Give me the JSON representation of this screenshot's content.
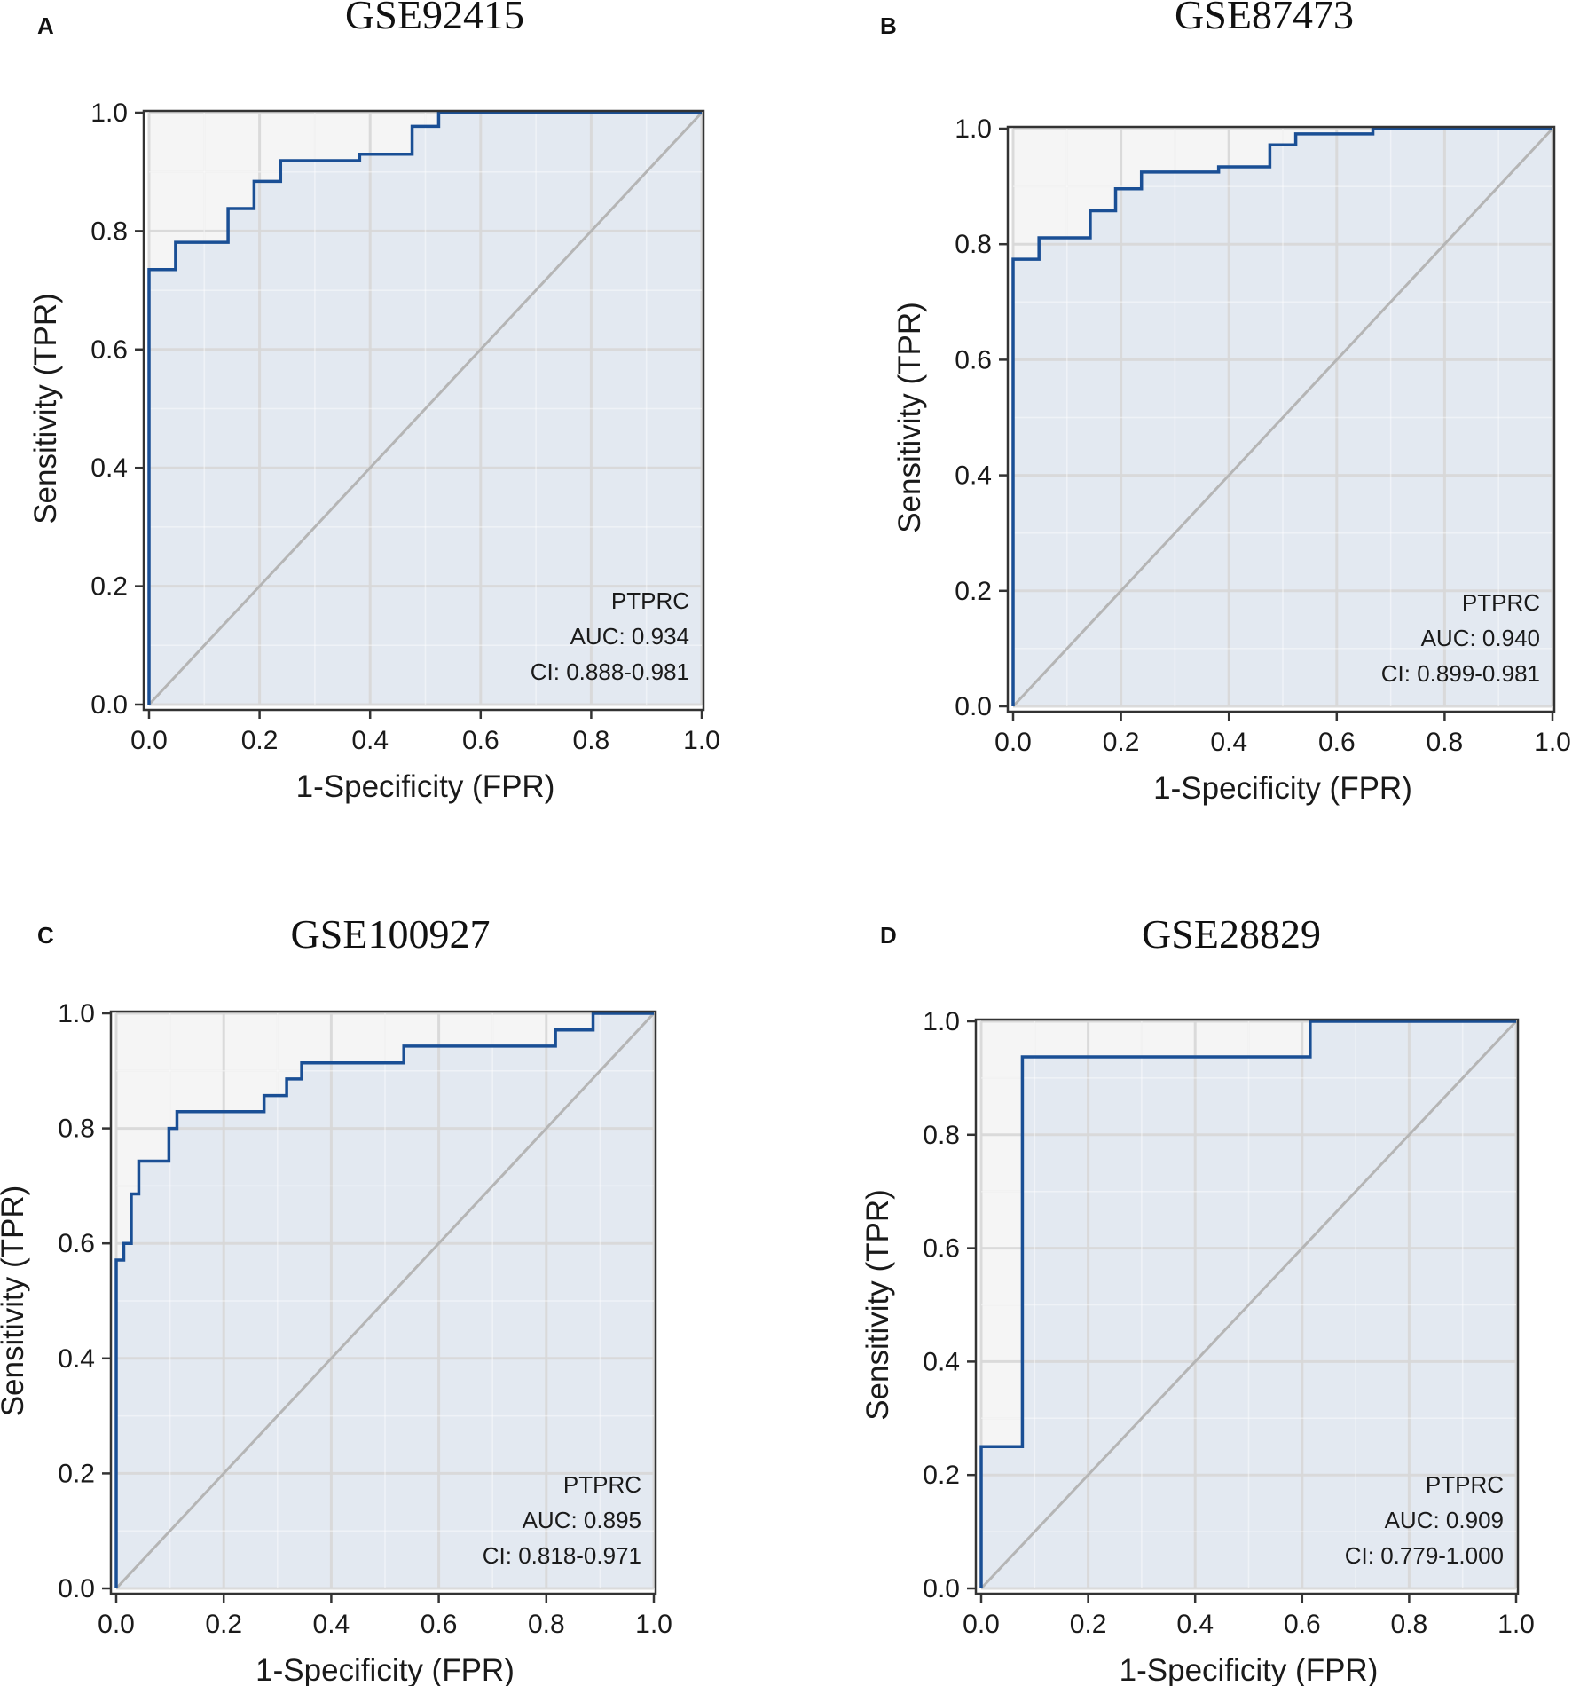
{
  "colors": {
    "roc_line": "#1a4f95",
    "fill": "#e3e9f1",
    "grid_major": "#d8d8d8",
    "grid_minor": "#ebebeb",
    "diagonal": "#b5b5b5",
    "axis": "#333333"
  },
  "chart_data": [
    {
      "type": "line",
      "panel": "A",
      "title": "GSE92415",
      "xlabel": "1-Specificity (FPR)",
      "ylabel": "Sensitivity (TPR)",
      "xlim": [
        0,
        1
      ],
      "ylim": [
        0,
        1
      ],
      "xticks": [
        "0.0",
        "0.2",
        "0.4",
        "0.6",
        "0.8",
        "1.0"
      ],
      "yticks": [
        "0.0",
        "0.2",
        "0.4",
        "0.6",
        "0.8",
        "1.0"
      ],
      "annotation": [
        "PTPRC",
        "AUC: 0.934",
        "CI: 0.888-0.981"
      ],
      "series": [
        {
          "name": "PTPRC",
          "fpr": [
            0,
            0,
            0.048,
            0.048,
            0.143,
            0.143,
            0.19,
            0.19,
            0.238,
            0.238,
            0.381,
            0.381,
            0.476,
            0.476,
            0.524,
            0.524,
            1.0
          ],
          "tpr": [
            0,
            0.735,
            0.735,
            0.781,
            0.781,
            0.838,
            0.838,
            0.884,
            0.884,
            0.919,
            0.919,
            0.93,
            0.93,
            0.977,
            0.977,
            1.0,
            1.0
          ]
        }
      ]
    },
    {
      "type": "line",
      "panel": "B",
      "title": "GSE87473",
      "xlabel": "1-Specificity (FPR)",
      "ylabel": "Sensitivity (TPR)",
      "xlim": [
        0,
        1
      ],
      "ylim": [
        0,
        1
      ],
      "xticks": [
        "0.0",
        "0.2",
        "0.4",
        "0.6",
        "0.8",
        "1.0"
      ],
      "yticks": [
        "0.0",
        "0.2",
        "0.4",
        "0.6",
        "0.8",
        "1.0"
      ],
      "annotation": [
        "PTPRC",
        "AUC: 0.940",
        "CI: 0.899-0.981"
      ],
      "series": [
        {
          "name": "PTPRC",
          "fpr": [
            0,
            0,
            0.048,
            0.048,
            0.143,
            0.143,
            0.19,
            0.19,
            0.238,
            0.238,
            0.381,
            0.381,
            0.476,
            0.476,
            0.524,
            0.524,
            0.667,
            0.667,
            1.0
          ],
          "tpr": [
            0,
            0.774,
            0.774,
            0.811,
            0.811,
            0.858,
            0.858,
            0.896,
            0.896,
            0.925,
            0.925,
            0.934,
            0.934,
            0.972,
            0.972,
            0.991,
            0.991,
            1.0,
            1.0
          ]
        }
      ]
    },
    {
      "type": "line",
      "panel": "C",
      "title": "GSE100927",
      "xlabel": "1-Specificity (FPR)",
      "ylabel": "Sensitivity (TPR)",
      "xlim": [
        0,
        1
      ],
      "ylim": [
        0,
        1
      ],
      "xticks": [
        "0.0",
        "0.2",
        "0.4",
        "0.6",
        "0.8",
        "1.0"
      ],
      "yticks": [
        "0.0",
        "0.2",
        "0.4",
        "0.6",
        "0.8",
        "1.0"
      ],
      "annotation": [
        "PTPRC",
        "AUC: 0.895",
        "CI: 0.818-0.971"
      ],
      "series": [
        {
          "name": "PTPRC",
          "fpr": [
            0,
            0,
            0.014,
            0.014,
            0.028,
            0.028,
            0.042,
            0.042,
            0.098,
            0.098,
            0.113,
            0.113,
            0.275,
            0.275,
            0.317,
            0.317,
            0.345,
            0.345,
            0.535,
            0.535,
            0.817,
            0.817,
            0.887,
            0.887,
            1.0
          ],
          "tpr": [
            0,
            0.571,
            0.571,
            0.6,
            0.6,
            0.686,
            0.686,
            0.743,
            0.743,
            0.8,
            0.8,
            0.829,
            0.829,
            0.857,
            0.857,
            0.886,
            0.886,
            0.914,
            0.914,
            0.943,
            0.943,
            0.971,
            0.971,
            1.0,
            1.0
          ]
        }
      ]
    },
    {
      "type": "line",
      "panel": "D",
      "title": "GSE28829",
      "xlabel": "1-Specificity (FPR)",
      "ylabel": "Sensitivity (TPR)",
      "xlim": [
        0,
        1
      ],
      "ylim": [
        0,
        1
      ],
      "xticks": [
        "0.0",
        "0.2",
        "0.4",
        "0.6",
        "0.8",
        "1.0"
      ],
      "yticks": [
        "0.0",
        "0.2",
        "0.4",
        "0.6",
        "0.8",
        "1.0"
      ],
      "annotation": [
        "PTPRC",
        "AUC: 0.909",
        "CI: 0.779-1.000"
      ],
      "series": [
        {
          "name": "PTPRC",
          "fpr": [
            0,
            0,
            0.077,
            0.077,
            0.615,
            0.615,
            1.0
          ],
          "tpr": [
            0,
            0.25,
            0.25,
            0.9375,
            0.9375,
            1.0,
            1.0
          ]
        }
      ]
    }
  ]
}
